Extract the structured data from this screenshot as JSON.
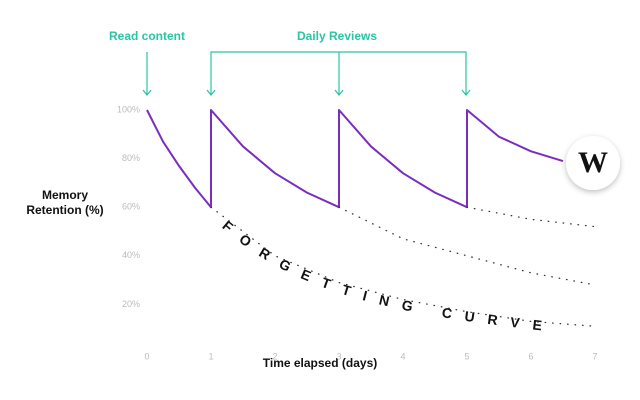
{
  "chart_data": {
    "type": "line",
    "xlabel": "Time elapsed (days)",
    "ylabel": "Memory Retention (%)",
    "annotations": {
      "read_content": "Read content",
      "daily_reviews": "Daily Reviews",
      "curve_label": "FORGETTING CURVE"
    },
    "logo": "W",
    "xlim": [
      0,
      7
    ],
    "xticks": [
      0,
      1,
      2,
      3,
      4,
      5,
      6,
      7
    ],
    "ylim": [
      0,
      100
    ],
    "yticks": [
      {
        "value": 20,
        "label": "20%"
      },
      {
        "value": 40,
        "label": "40%"
      },
      {
        "value": 60,
        "label": "60%"
      },
      {
        "value": 80,
        "label": "80%"
      },
      {
        "value": 100,
        "label": "100%"
      }
    ],
    "grid": false,
    "series": [
      {
        "color": "#7a2dbf",
        "style": "solid",
        "x": [
          0,
          0.25,
          0.5,
          0.75,
          1,
          1,
          1.5,
          2,
          2.5,
          3,
          3,
          3.5,
          4,
          4.5,
          5,
          5,
          5.5,
          6,
          6.5
        ],
        "values": [
          100,
          87,
          77,
          68,
          60,
          100,
          85,
          74,
          66,
          60,
          100,
          85,
          74,
          66,
          60,
          100,
          89,
          83,
          79
        ]
      },
      {
        "color": "#333333",
        "style": "dotted",
        "x": [
          1,
          2,
          3,
          4,
          5,
          6,
          7
        ],
        "values": [
          60,
          40,
          29,
          22,
          17,
          13,
          11
        ]
      },
      {
        "color": "#333333",
        "style": "dotted",
        "x": [
          3,
          4,
          5,
          6,
          7
        ],
        "values": [
          60,
          47,
          40,
          33,
          28
        ]
      },
      {
        "color": "#333333",
        "style": "dotted",
        "x": [
          5,
          6,
          7
        ],
        "values": [
          60,
          55,
          52
        ]
      }
    ]
  }
}
